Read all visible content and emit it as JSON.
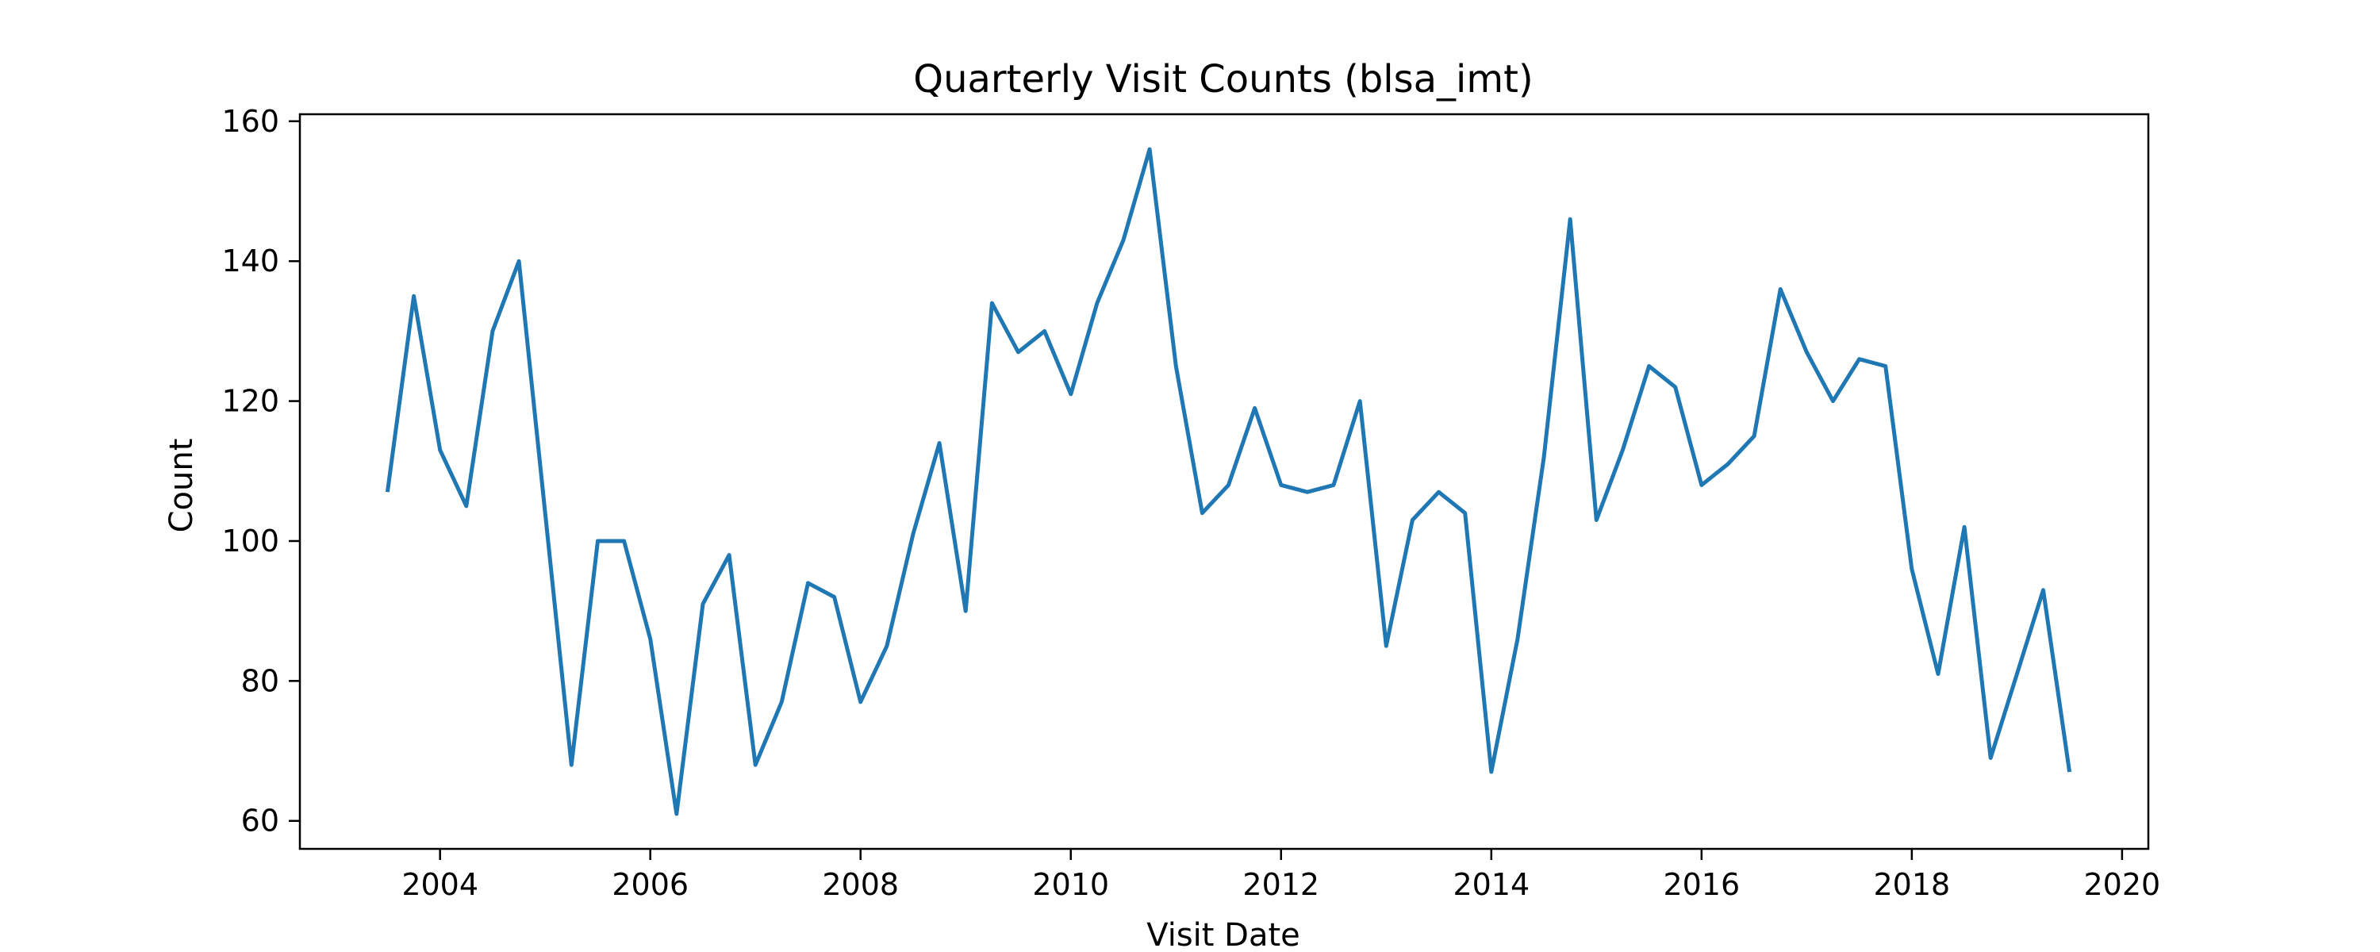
{
  "chart_data": {
    "type": "line",
    "title": "Quarterly Visit Counts (blsa_imt)",
    "xlabel": "Visit Date",
    "ylabel": "Count",
    "xlim": [
      "2002-09",
      "2020-04"
    ],
    "ylim": [
      56,
      161
    ],
    "xticks": [
      "2004",
      "2006",
      "2008",
      "2010",
      "2012",
      "2014",
      "2016",
      "2018",
      "2020"
    ],
    "yticks": [
      "60",
      "80",
      "100",
      "120",
      "140",
      "160"
    ],
    "grid": false,
    "series_color": "#1f77b4",
    "series": [
      {
        "x": [
          "2003-Q3",
          "2003-Q4",
          "2004-Q1",
          "2004-Q2",
          "2004-Q3",
          "2004-Q4",
          "2005-Q1",
          "2005-Q2",
          "2005-Q3",
          "2005-Q4",
          "2006-Q1",
          "2006-Q2",
          "2006-Q3",
          "2006-Q4",
          "2007-Q1",
          "2007-Q2",
          "2007-Q3",
          "2007-Q4",
          "2008-Q1",
          "2008-Q2",
          "2008-Q3",
          "2008-Q4",
          "2009-Q1",
          "2009-Q2",
          "2009-Q3",
          "2009-Q4",
          "2010-Q1",
          "2010-Q2",
          "2010-Q3",
          "2010-Q4",
          "2011-Q1",
          "2011-Q2",
          "2011-Q3",
          "2011-Q4",
          "2012-Q1",
          "2012-Q2",
          "2012-Q3",
          "2012-Q4",
          "2013-Q1",
          "2013-Q2",
          "2013-Q3",
          "2013-Q4",
          "2014-Q1",
          "2014-Q2",
          "2014-Q3",
          "2014-Q4",
          "2015-Q1",
          "2015-Q2",
          "2015-Q3",
          "2015-Q4",
          "2016-Q1",
          "2016-Q2",
          "2016-Q3",
          "2016-Q4",
          "2017-Q1",
          "2017-Q2",
          "2017-Q3",
          "2017-Q4",
          "2018-Q1",
          "2018-Q2",
          "2018-Q3",
          "2018-Q4",
          "2019-Q1",
          "2019-Q2",
          "2019-Q3"
        ],
        "values": [
          107,
          135,
          113,
          105,
          130,
          140,
          104,
          68,
          100,
          100,
          86,
          61,
          91,
          98,
          68,
          77,
          94,
          92,
          77,
          85,
          101,
          114,
          90,
          134,
          127,
          130,
          121,
          134,
          143,
          156,
          125,
          104,
          108,
          119,
          108,
          107,
          108,
          120,
          85,
          103,
          107,
          104,
          67,
          86,
          112,
          146,
          103,
          113,
          125,
          122,
          108,
          111,
          115,
          136,
          127,
          120,
          126,
          125,
          96,
          81,
          102,
          69,
          81,
          93,
          67
        ]
      }
    ]
  }
}
